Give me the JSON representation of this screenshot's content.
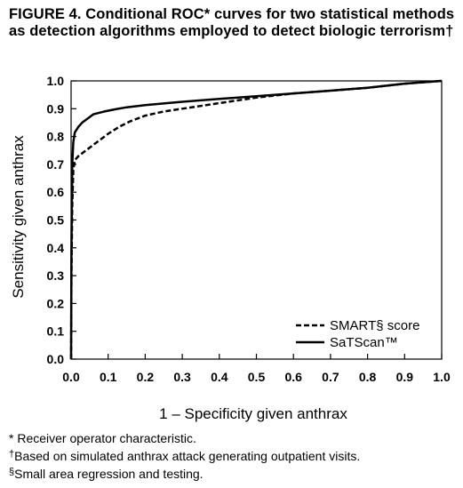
{
  "chart_data": {
    "type": "line",
    "title": "FIGURE 4. Conditional ROC* curves for two statistical methods as detection algorithms employed to detect biologic terrorism†",
    "xlabel": "1 – Specificity given anthrax",
    "ylabel": "Sensitivity given anthrax",
    "xlim": [
      0,
      1
    ],
    "ylim": [
      0,
      1
    ],
    "x_ticks": [
      "0.0",
      "0.1",
      "0.2",
      "0.3",
      "0.4",
      "0.5",
      "0.6",
      "0.7",
      "0.8",
      "0.9",
      "1.0"
    ],
    "y_ticks": [
      "0.0",
      "0.1",
      "0.2",
      "0.3",
      "0.4",
      "0.5",
      "0.6",
      "0.7",
      "0.8",
      "0.9",
      "1.0"
    ],
    "grid": false,
    "legend_position": "bottom-right",
    "series": [
      {
        "name": "SMART§ score",
        "style": "dashed",
        "x": [
          0.0,
          0.001,
          0.003,
          0.006,
          0.01,
          0.02,
          0.04,
          0.06,
          0.08,
          0.1,
          0.13,
          0.16,
          0.2,
          0.25,
          0.3,
          0.35,
          0.4,
          0.45,
          0.5,
          0.6,
          0.7,
          0.8,
          0.9,
          1.0
        ],
        "y": [
          0.0,
          0.3,
          0.55,
          0.68,
          0.715,
          0.73,
          0.75,
          0.77,
          0.79,
          0.81,
          0.835,
          0.855,
          0.875,
          0.89,
          0.9,
          0.91,
          0.92,
          0.93,
          0.94,
          0.955,
          0.965,
          0.975,
          0.99,
          1.0
        ]
      },
      {
        "name": "SaTScan™",
        "style": "solid",
        "x": [
          0.0,
          0.001,
          0.003,
          0.006,
          0.01,
          0.02,
          0.03,
          0.045,
          0.06,
          0.09,
          0.12,
          0.15,
          0.18,
          0.2,
          0.3,
          0.4,
          0.5,
          0.6,
          0.7,
          0.8,
          0.9,
          1.0
        ],
        "y": [
          0.0,
          0.4,
          0.7,
          0.78,
          0.815,
          0.835,
          0.85,
          0.865,
          0.88,
          0.89,
          0.898,
          0.905,
          0.91,
          0.913,
          0.925,
          0.935,
          0.945,
          0.955,
          0.965,
          0.975,
          0.99,
          1.0
        ]
      }
    ]
  },
  "footnotes": [
    {
      "mark": "*",
      "text": "Receiver operator characteristic."
    },
    {
      "mark": "†",
      "text": "Based on simulated anthrax attack generating outpatient visits."
    },
    {
      "mark": "§",
      "text": "Small area regression and testing."
    }
  ],
  "colors": {
    "line": "#000000",
    "axis": "#000000"
  }
}
